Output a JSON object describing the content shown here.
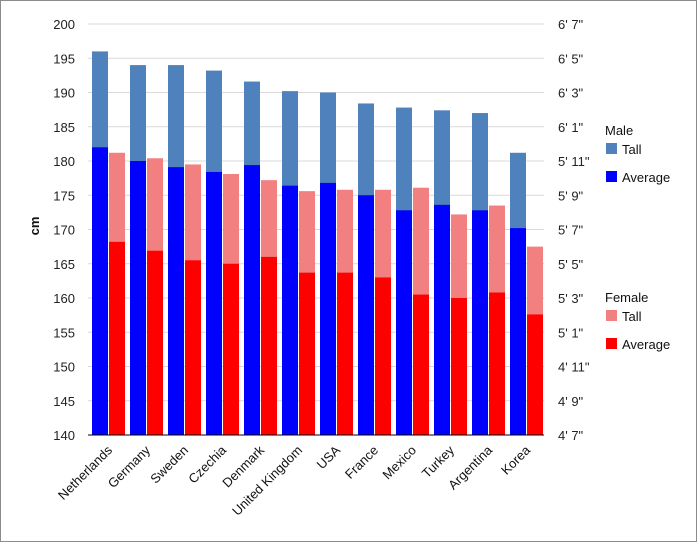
{
  "chart_data": {
    "type": "bar",
    "title": "",
    "xlabel": "",
    "ylabel": "cm",
    "ylim": [
      140,
      200
    ],
    "y_ticks": [
      140,
      145,
      150,
      155,
      160,
      165,
      170,
      175,
      180,
      185,
      190,
      195,
      200
    ],
    "y2_ticks": [
      "4' 7\"",
      "4' 9\"",
      "4' 11\"",
      "5' 1\"",
      "5' 3\"",
      "5' 5\"",
      "5' 7\"",
      "5' 9\"",
      "5' 11\"",
      "6' 1\"",
      "6' 3\"",
      "6' 5\"",
      "6' 7\""
    ],
    "grid": true,
    "categories": [
      "Netherlands",
      "Germany",
      "Sweden",
      "Czechia",
      "Denmark",
      "United Kingdom",
      "USA",
      "France",
      "Mexico",
      "Turkey",
      "Argentina",
      "Korea"
    ],
    "series": [
      {
        "group": "Male",
        "name": "Tall",
        "color": "#4f81bd",
        "values": [
          196,
          194,
          194,
          193.2,
          191.6,
          190.2,
          190,
          188.4,
          187.8,
          187.4,
          187,
          181.2
        ]
      },
      {
        "group": "Male",
        "name": "Average",
        "color": "#0000ff",
        "values": [
          182,
          180,
          179.1,
          178.4,
          179.4,
          176.4,
          176.8,
          175,
          172.8,
          173.6,
          172.8,
          170.2
        ]
      },
      {
        "group": "Female",
        "name": "Tall",
        "color": "#f28080",
        "values": [
          181.2,
          180.4,
          179.5,
          178.1,
          177.2,
          175.6,
          175.8,
          175.8,
          176.1,
          172.2,
          173.5,
          167.5
        ]
      },
      {
        "group": "Female",
        "name": "Average",
        "color": "#ff0000",
        "values": [
          168.2,
          166.9,
          165.5,
          165,
          166,
          163.7,
          163.7,
          163,
          160.5,
          160,
          160.8,
          157.6
        ]
      }
    ],
    "legend": {
      "position": "right",
      "groups": [
        {
          "title": "Male",
          "items": [
            {
              "label": "Tall",
              "color": "#4f81bd"
            },
            {
              "label": "Average",
              "color": "#0000ff"
            }
          ]
        },
        {
          "title": "Female",
          "items": [
            {
              "label": "Tall",
              "color": "#f28080"
            },
            {
              "label": "Average",
              "color": "#ff0000"
            }
          ]
        }
      ]
    }
  }
}
